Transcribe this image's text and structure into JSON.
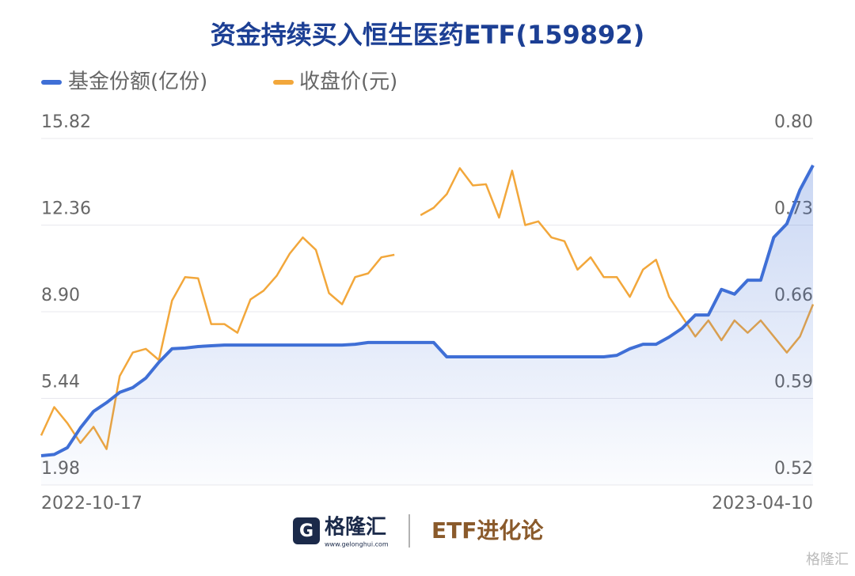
{
  "chart_data": {
    "type": "line",
    "title": "资金持续买入恒生医药ETF(159892)",
    "categories": [
      "2022-10-17",
      null,
      null,
      null,
      null,
      null,
      null,
      null,
      null,
      null,
      null,
      null,
      null,
      null,
      null,
      null,
      null,
      null,
      null,
      null,
      null,
      null,
      null,
      null,
      null,
      null,
      null,
      null,
      null,
      null,
      null,
      null,
      null,
      null,
      null,
      null,
      null,
      null,
      null,
      null,
      null,
      null,
      null,
      null,
      null,
      null,
      null,
      null,
      null,
      null,
      null,
      null,
      null,
      null,
      null,
      null,
      null,
      null,
      null,
      "2023-04-10"
    ],
    "series": [
      {
        "name": "基金份额(亿份)",
        "color": "#3f6fd6",
        "axis": "y",
        "values": [
          3.15,
          3.2,
          3.47,
          4.26,
          4.92,
          5.27,
          5.68,
          5.87,
          6.25,
          6.88,
          7.42,
          7.45,
          7.51,
          7.54,
          7.57,
          7.57,
          7.57,
          7.57,
          7.57,
          7.57,
          7.57,
          7.57,
          7.57,
          7.57,
          7.6,
          7.67,
          7.67,
          7.67,
          7.67,
          7.67,
          7.67,
          7.1,
          7.1,
          7.1,
          7.1,
          7.1,
          7.1,
          7.1,
          7.1,
          7.1,
          7.1,
          7.1,
          7.1,
          7.1,
          7.16,
          7.42,
          7.6,
          7.6,
          7.89,
          8.24,
          8.77,
          8.77,
          9.79,
          9.6,
          10.16,
          10.16,
          11.87,
          12.41,
          13.77,
          14.75
        ]
      },
      {
        "name": "收盘价(元)",
        "color": "#f2a73b",
        "axis": "y2",
        "values": [
          0.56,
          0.583,
          0.57,
          0.554,
          0.567,
          0.549,
          0.608,
          0.627,
          0.63,
          0.621,
          0.669,
          0.688,
          0.687,
          0.65,
          0.65,
          0.643,
          0.67,
          0.677,
          0.689,
          0.707,
          0.72,
          0.71,
          0.675,
          0.666,
          0.688,
          0.691,
          0.704,
          0.706,
          null,
          0.738,
          0.744,
          0.755,
          0.776,
          0.762,
          0.763,
          0.736,
          0.774,
          0.73,
          0.733,
          0.72,
          0.717,
          0.694,
          0.704,
          0.688,
          0.688,
          0.672,
          0.694,
          0.702,
          0.672,
          0.656,
          0.64,
          0.653,
          0.637,
          0.653,
          0.643,
          0.653,
          0.64,
          0.627,
          0.64,
          0.666
        ]
      }
    ],
    "ylim": [
      1.98,
      15.82
    ],
    "yticks": [
      1.98,
      5.44,
      {
        "value": 8.9,
        "label": "8.90"
      },
      12.36,
      15.82
    ],
    "y2lim": [
      0.52,
      0.8
    ],
    "y2ticks": [
      0.52,
      0.59,
      0.66,
      0.73,
      {
        "value": 0.8,
        "label": "0.80"
      }
    ],
    "grid": true
  },
  "footer": {
    "brand": "格隆汇",
    "url": "www.gelonghui.com",
    "column": "ETF进化论",
    "watermark": "格隆汇"
  }
}
